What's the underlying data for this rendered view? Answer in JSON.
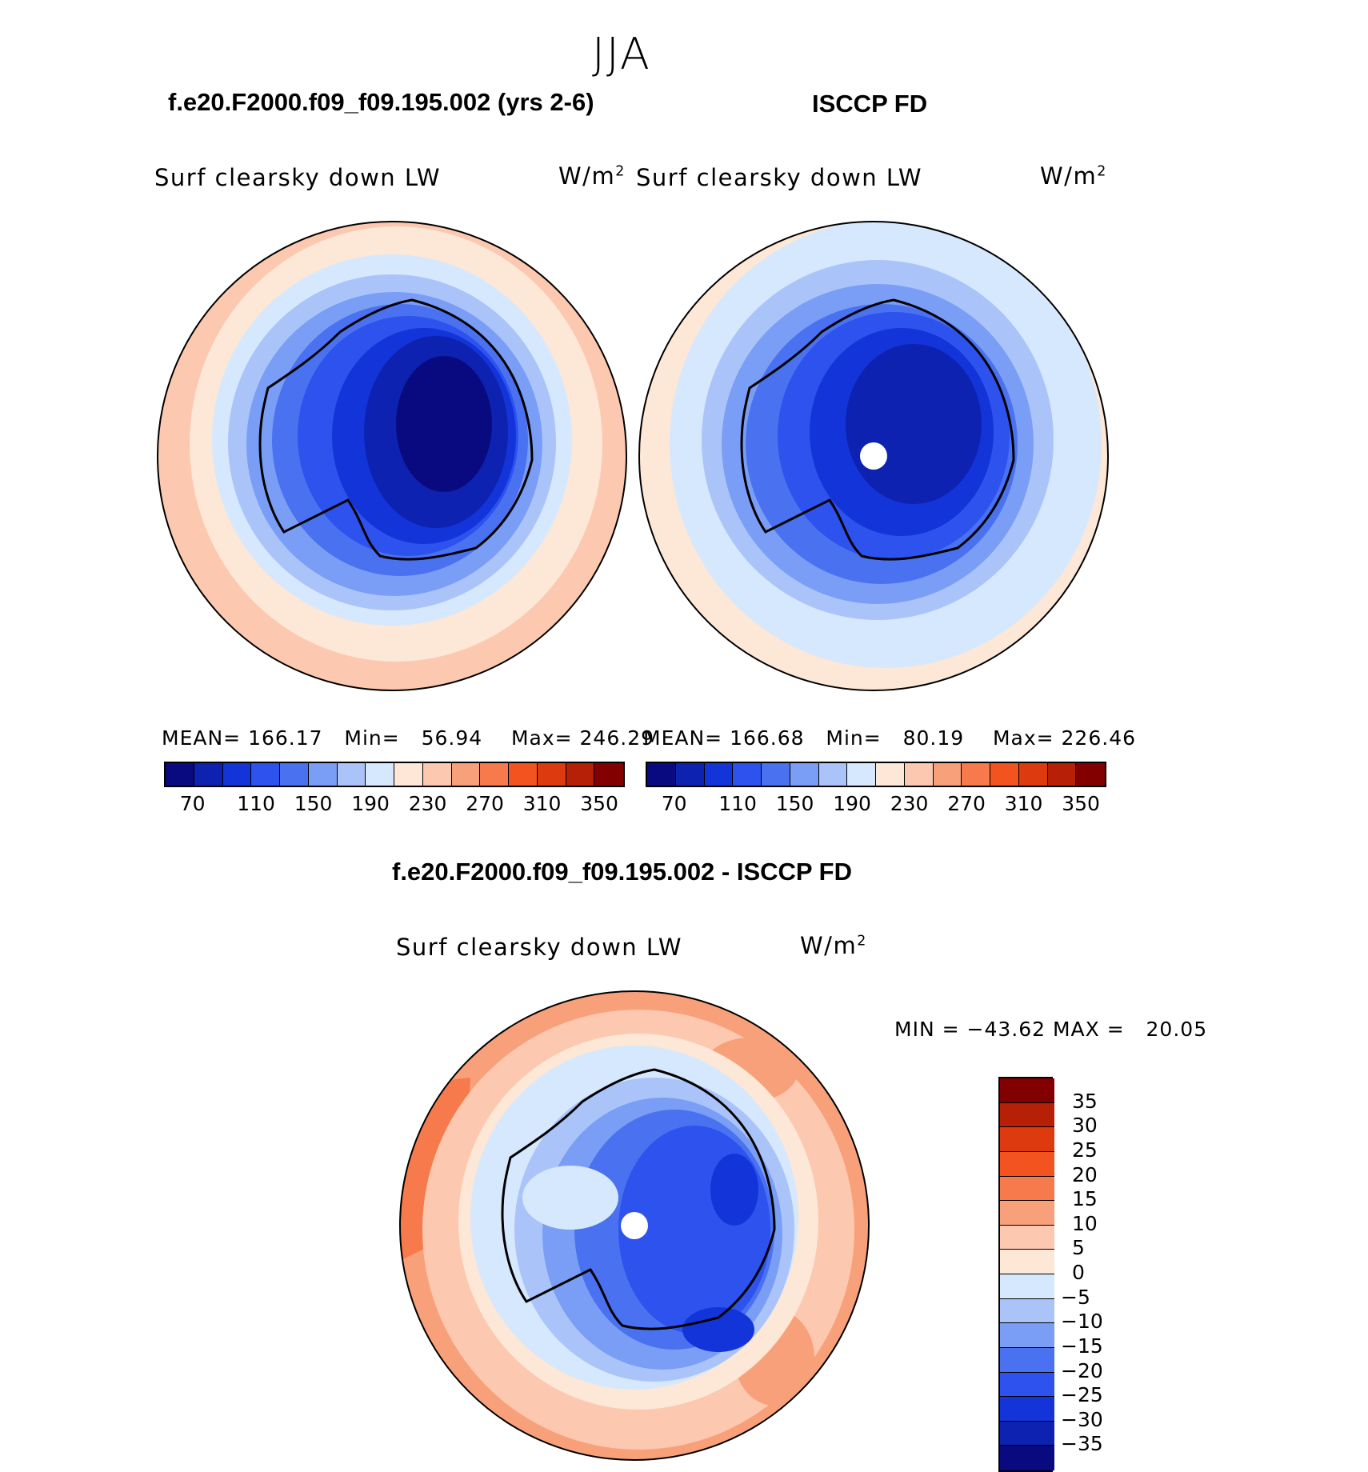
{
  "season": "JJA",
  "panels": [
    {
      "case_title": "f.e20.F2000.f09_f09.195.002 (yrs 2-6)",
      "variable": "Surf clearsky down LW",
      "units_base": "W/m",
      "units_exp": "2",
      "stats": {
        "mean_label": "MEAN=",
        "mean": "166.17",
        "min_label": "Min=",
        "min": "56.94",
        "max_label": "Max=",
        "max": "246.29"
      }
    },
    {
      "case_title": "ISCCP FD",
      "variable": "Surf clearsky down LW",
      "units_base": "W/m",
      "units_exp": "2",
      "stats": {
        "mean_label": "MEAN=",
        "mean": "166.68",
        "min_label": "Min=",
        "min": "80.19",
        "max_label": "Max=",
        "max": "226.46"
      }
    }
  ],
  "abs_colorbar": {
    "colors": [
      "#0a0a80",
      "#0d22b0",
      "#1334d8",
      "#2d52ee",
      "#4a72f0",
      "#7a9ef5",
      "#aac4fa",
      "#d6e8fd",
      "#fde7d6",
      "#fcc8b0",
      "#f8a07a",
      "#f67a4c",
      "#f3531f",
      "#de3a10",
      "#b52006",
      "#830000"
    ],
    "tick_labels": [
      "70",
      "110",
      "150",
      "190",
      "230",
      "270",
      "310",
      "350"
    ]
  },
  "diff": {
    "title": "f.e20.F2000.f09_f09.195.002 - ISCCP FD",
    "variable": "Surf clearsky down LW",
    "units_base": "W/m",
    "units_exp": "2",
    "min_label": "MIN =",
    "min": "−43.62",
    "max_label": "MAX =",
    "max": "20.05",
    "colorbar": {
      "colors": [
        "#830000",
        "#b52006",
        "#de3a10",
        "#f3531f",
        "#f67a4c",
        "#f8a07a",
        "#fcc8b0",
        "#fde7d6",
        "#d6e8fd",
        "#aac4fa",
        "#7a9ef5",
        "#4a72f0",
        "#2d52ee",
        "#1334d8",
        "#0d22b0",
        "#0a0a80"
      ],
      "tick_labels": [
        "35",
        "30",
        "25",
        "20",
        "15",
        "10",
        "5",
        "0",
        "−5",
        "−10",
        "−15",
        "−20",
        "−25",
        "−30",
        "−35"
      ]
    }
  }
}
